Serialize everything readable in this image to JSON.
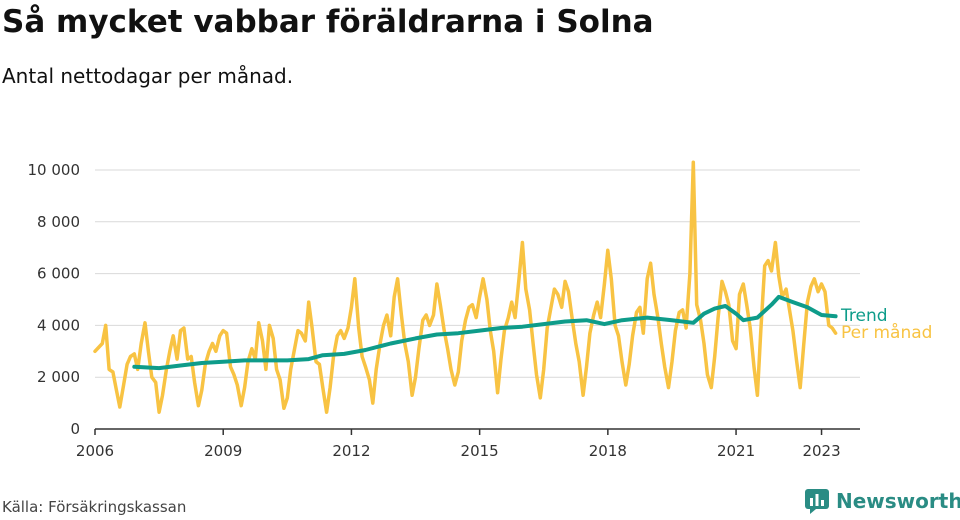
{
  "title": "Så mycket vabbar föräldrarna i Solna",
  "subtitle": "Antal nettodagar per månad.",
  "source": "Källa: Försäkringskassan",
  "brand": "Newsworthy",
  "colors": {
    "per_month": "#F8C343",
    "trend": "#0E9C8A",
    "grid": "#d9d9d9",
    "brand": "#2a8c84"
  },
  "chart_data": {
    "type": "line",
    "ylim": [
      0,
      10000
    ],
    "yticks": [
      0,
      2000,
      4000,
      6000,
      8000,
      10000
    ],
    "ytick_labels": [
      "0",
      "2 000",
      "4 000",
      "6 000",
      "8 000",
      "10 000"
    ],
    "xlim": [
      2006,
      2023.9
    ],
    "xticks": [
      2006,
      2009,
      2012,
      2015,
      2018,
      2021,
      2023
    ],
    "xtick_labels": [
      "2006",
      "2009",
      "2012",
      "2015",
      "2018",
      "2021",
      "2023"
    ],
    "grid": true,
    "series": [
      {
        "name": "Per månad",
        "x": [
          2006.0,
          2006.17,
          2006.25,
          2006.33,
          2006.42,
          2006.5,
          2006.58,
          2006.67,
          2006.75,
          2006.83,
          2006.92,
          2007.0,
          2007.08,
          2007.17,
          2007.25,
          2007.33,
          2007.42,
          2007.5,
          2007.58,
          2007.67,
          2007.75,
          2007.83,
          2007.92,
          2008.0,
          2008.08,
          2008.17,
          2008.25,
          2008.33,
          2008.42,
          2008.5,
          2008.58,
          2008.67,
          2008.75,
          2008.83,
          2008.92,
          2009.0,
          2009.08,
          2009.17,
          2009.25,
          2009.33,
          2009.42,
          2009.5,
          2009.58,
          2009.67,
          2009.75,
          2009.83,
          2009.92,
          2010.0,
          2010.08,
          2010.17,
          2010.25,
          2010.33,
          2010.42,
          2010.5,
          2010.58,
          2010.67,
          2010.75,
          2010.83,
          2010.92,
          2011.0,
          2011.08,
          2011.17,
          2011.25,
          2011.33,
          2011.42,
          2011.5,
          2011.58,
          2011.67,
          2011.75,
          2011.83,
          2011.92,
          2012.0,
          2012.08,
          2012.17,
          2012.25,
          2012.33,
          2012.42,
          2012.5,
          2012.58,
          2012.67,
          2012.75,
          2012.83,
          2012.92,
          2013.0,
          2013.08,
          2013.17,
          2013.25,
          2013.33,
          2013.42,
          2013.5,
          2013.58,
          2013.67,
          2013.75,
          2013.83,
          2013.92,
          2014.0,
          2014.08,
          2014.17,
          2014.25,
          2014.33,
          2014.42,
          2014.5,
          2014.58,
          2014.67,
          2014.75,
          2014.83,
          2014.92,
          2015.0,
          2015.08,
          2015.17,
          2015.25,
          2015.33,
          2015.42,
          2015.5,
          2015.58,
          2015.67,
          2015.75,
          2015.83,
          2015.92,
          2016.0,
          2016.08,
          2016.17,
          2016.25,
          2016.33,
          2016.42,
          2016.5,
          2016.58,
          2016.67,
          2016.75,
          2016.83,
          2016.92,
          2017.0,
          2017.08,
          2017.17,
          2017.25,
          2017.33,
          2017.42,
          2017.5,
          2017.58,
          2017.67,
          2017.75,
          2017.83,
          2017.92,
          2018.0,
          2018.08,
          2018.17,
          2018.25,
          2018.33,
          2018.42,
          2018.5,
          2018.58,
          2018.67,
          2018.75,
          2018.83,
          2018.92,
          2019.0,
          2019.08,
          2019.17,
          2019.25,
          2019.33,
          2019.42,
          2019.5,
          2019.58,
          2019.67,
          2019.75,
          2019.83,
          2019.92,
          2020.0,
          2020.08,
          2020.17,
          2020.25,
          2020.33,
          2020.42,
          2020.5,
          2020.58,
          2020.67,
          2020.75,
          2020.83,
          2020.92,
          2021.0,
          2021.08,
          2021.17,
          2021.25,
          2021.33,
          2021.42,
          2021.5,
          2021.58,
          2021.67,
          2021.75,
          2021.83,
          2021.92,
          2022.0,
          2022.08,
          2022.17,
          2022.25,
          2022.33,
          2022.42,
          2022.5,
          2022.58,
          2022.67,
          2022.75,
          2022.83,
          2022.92,
          2023.0,
          2023.08,
          2023.17,
          2023.25,
          2023.33
        ],
        "values": [
          3000,
          3300,
          4000,
          2300,
          2200,
          1500,
          850,
          1700,
          2500,
          2800,
          2900,
          2300,
          3300,
          4100,
          3000,
          2000,
          1800,
          650,
          1300,
          2300,
          3000,
          3600,
          2700,
          3800,
          3900,
          2700,
          2800,
          1800,
          900,
          1500,
          2500,
          3000,
          3300,
          3000,
          3600,
          3800,
          3700,
          2400,
          2100,
          1700,
          900,
          1600,
          2600,
          3100,
          2700,
          4100,
          3400,
          2300,
          4000,
          3500,
          2300,
          1900,
          800,
          1200,
          2300,
          3100,
          3800,
          3700,
          3400,
          4900,
          3900,
          2600,
          2500,
          1600,
          650,
          1600,
          2800,
          3600,
          3800,
          3500,
          3900,
          4700,
          5800,
          3900,
          2800,
          2400,
          1900,
          1000,
          2300,
          3300,
          4000,
          4400,
          3600,
          5100,
          5800,
          4400,
          3300,
          2600,
          1300,
          2000,
          3100,
          4200,
          4400,
          4000,
          4400,
          5600,
          4800,
          3800,
          3100,
          2300,
          1700,
          2200,
          3400,
          4200,
          4700,
          4800,
          4300,
          5100,
          5800,
          5000,
          3800,
          3000,
          1400,
          2700,
          3800,
          4300,
          4900,
          4300,
          5800,
          7200,
          5400,
          4600,
          3300,
          2100,
          1200,
          2300,
          3900,
          4700,
          5400,
          5200,
          4700,
          5700,
          5300,
          4200,
          3300,
          2600,
          1300,
          2400,
          3700,
          4400,
          4900,
          4300,
          5600,
          6900,
          5800,
          4000,
          3600,
          2600,
          1700,
          2500,
          3600,
          4500,
          4700,
          3700,
          5800,
          6400,
          5200,
          4300,
          3300,
          2400,
          1600,
          2600,
          3800,
          4500,
          4600,
          3900,
          6000,
          10300,
          4800,
          4200,
          3300,
          2100,
          1600,
          2800,
          4300,
          5700,
          5300,
          4800,
          3400,
          3100,
          5200,
          5600,
          4800,
          3900,
          2400,
          1300,
          3800,
          6300,
          6500,
          6100,
          7200,
          5900,
          5100,
          5400,
          4600,
          3800,
          2600,
          1600,
          3200,
          4900,
          5500,
          5800,
          5300,
          5600,
          5300,
          4000,
          3900,
          3700
        ]
      },
      {
        "name": "Trend",
        "x": [
          2006.92,
          2007.5,
          2008.0,
          2008.5,
          2009.0,
          2009.5,
          2010.0,
          2010.5,
          2011.0,
          2011.33,
          2011.83,
          2012.33,
          2012.92,
          2013.5,
          2014.0,
          2014.5,
          2015.0,
          2015.5,
          2016.0,
          2016.5,
          2017.0,
          2017.5,
          2017.92,
          2018.33,
          2018.92,
          2019.5,
          2020.0,
          2020.25,
          2020.5,
          2020.75,
          2021.0,
          2021.17,
          2021.5,
          2021.83,
          2022.0,
          2022.33,
          2022.67,
          2023.0,
          2023.33
        ],
        "values": [
          2400,
          2350,
          2450,
          2550,
          2600,
          2650,
          2650,
          2650,
          2700,
          2850,
          2900,
          3050,
          3300,
          3500,
          3650,
          3700,
          3800,
          3900,
          3950,
          4050,
          4150,
          4200,
          4050,
          4200,
          4300,
          4200,
          4100,
          4450,
          4650,
          4750,
          4450,
          4200,
          4300,
          4800,
          5100,
          4900,
          4700,
          4400,
          4350
        ]
      }
    ]
  }
}
